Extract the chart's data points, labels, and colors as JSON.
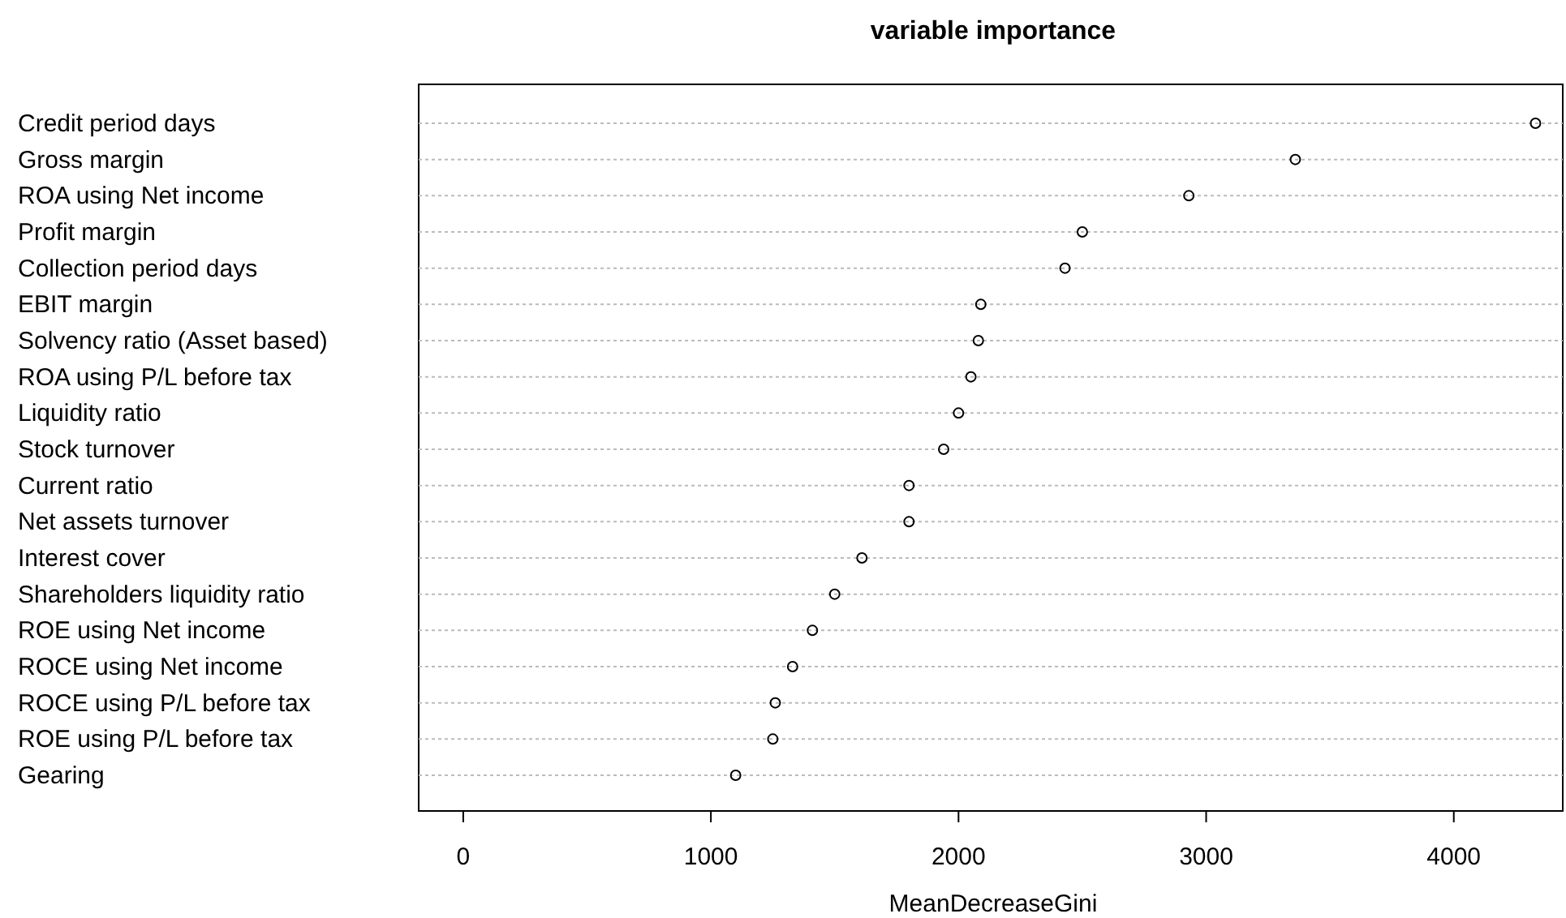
{
  "chart_data": {
    "type": "scatter",
    "orientation": "horizontal",
    "title": "variable importance",
    "xlabel": "MeanDecreaseGini",
    "categories": [
      "Credit period days",
      "Gross margin",
      "ROA using Net income",
      "Profit margin",
      "Collection period days",
      "EBIT margin",
      "Solvency ratio (Asset based)",
      "ROA using P/L before tax",
      "Liquidity ratio",
      "Stock turnover",
      "Current ratio",
      "Net assets turnover",
      "Interest cover",
      "Shareholders liquidity ratio",
      "ROE using Net income",
      "ROCE using Net income",
      "ROCE using P/L before tax",
      "ROE using P/L before tax",
      "Gearing"
    ],
    "values": [
      4330,
      3360,
      2930,
      2500,
      2430,
      2090,
      2080,
      2050,
      2000,
      1940,
      1800,
      1800,
      1610,
      1500,
      1410,
      1330,
      1260,
      1250,
      1100
    ],
    "color": "#000000",
    "marker": "circle",
    "grid": "y",
    "xlim": [
      -180,
      4440
    ],
    "xticks": [
      0,
      1000,
      2000,
      3000,
      4000
    ]
  }
}
